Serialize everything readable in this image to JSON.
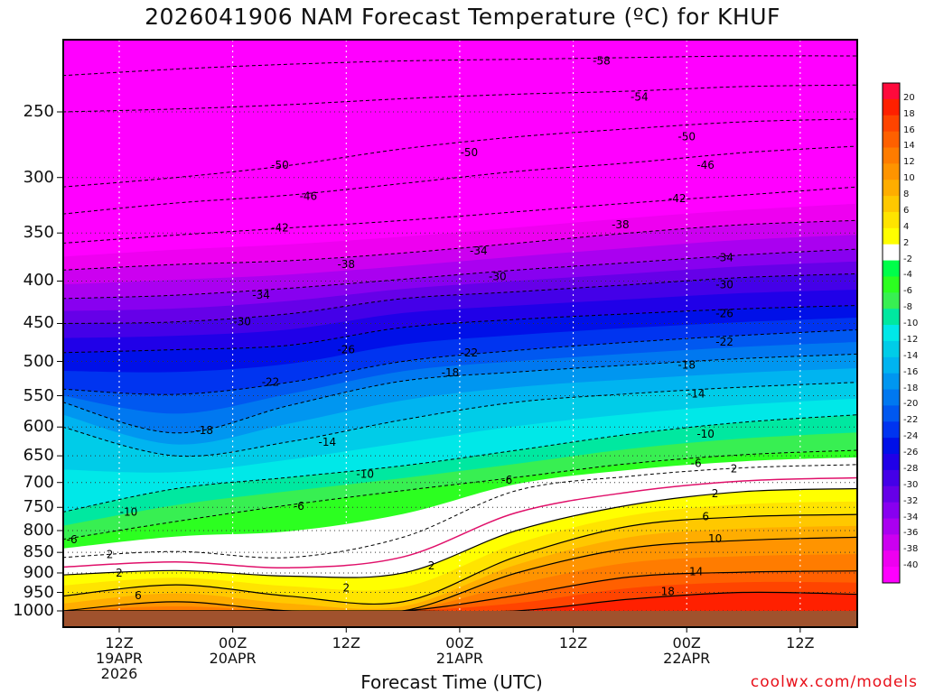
{
  "title": "2026041906 NAM Forecast Temperature (ºC) for KHUF",
  "credit": "coolwx.com/models",
  "chart_data": {
    "type": "heatmap",
    "title": "2026041906 NAM Forecast Temperature (ºC) for KHUF",
    "xlabel": "Forecast Time (UTC)",
    "ylabel": "",
    "x_unit": "forecast hour",
    "xlim": [
      0,
      84
    ],
    "ylim_hpa": [
      1000,
      200
    ],
    "y_scale": "log-pressure",
    "grid": true,
    "x_ticks": [
      {
        "hour": 6,
        "lines": [
          "12Z",
          "19APR",
          "2026"
        ]
      },
      {
        "hour": 18,
        "lines": [
          "00Z",
          "20APR"
        ]
      },
      {
        "hour": 30,
        "lines": [
          "12Z"
        ]
      },
      {
        "hour": 42,
        "lines": [
          "00Z",
          "21APR"
        ]
      },
      {
        "hour": 54,
        "lines": [
          "12Z"
        ]
      },
      {
        "hour": 66,
        "lines": [
          "00Z",
          "22APR"
        ]
      },
      {
        "hour": 78,
        "lines": [
          "12Z"
        ]
      }
    ],
    "y_ticks": [
      "250",
      "300",
      "350",
      "400",
      "450",
      "500",
      "550",
      "600",
      "650",
      "700",
      "750",
      "800",
      "850",
      "900",
      "950",
      "1000"
    ],
    "colorbar": {
      "labels": [
        "20",
        "18",
        "16",
        "14",
        "12",
        "10",
        "8",
        "6",
        "4",
        "2",
        "-2",
        "-4",
        "-6",
        "-8",
        "-10",
        "-12",
        "-14",
        "-16",
        "-18",
        "-20",
        "-22",
        "-24",
        "-26",
        "-28",
        "-30",
        "-32",
        "-34",
        "-36",
        "-38",
        "-40"
      ],
      "colors": [
        "#ff0a3c",
        "#ff2000",
        "#ff4400",
        "#ff6000",
        "#ff7c00",
        "#ff9400",
        "#ffad00",
        "#ffc800",
        "#ffe400",
        "#ffff00",
        "#ffffff",
        "#00ff4a",
        "#2cff20",
        "#38ef52",
        "#00e8a0",
        "#00e8e8",
        "#00cce8",
        "#00b4f0",
        "#0096f0",
        "#0078f0",
        "#0058f0",
        "#0034f0",
        "#0010e8",
        "#2000e8",
        "#4400e8",
        "#6600e8",
        "#8800f0",
        "#aa00f0",
        "#cc00f0",
        "#ee00f0",
        "#ff00ff"
      ]
    },
    "surface_color": "#a0522d",
    "isotherms_C": [
      {
        "t": -58,
        "p": [
          226,
          222,
          219,
          217,
          216,
          215,
          214,
          214
        ]
      },
      {
        "t": -54,
        "p": [
          250,
          248,
          245,
          241,
          238,
          236,
          233,
          232
        ]
      },
      {
        "t": -50,
        "p": [
          308,
          300,
          290,
          277,
          268,
          262,
          257,
          255
        ]
      },
      {
        "t": -46,
        "p": [
          332,
          322,
          315,
          305,
          295,
          288,
          280,
          275
        ]
      },
      {
        "t": -42,
        "p": [
          360,
          352,
          345,
          338,
          330,
          322,
          315,
          308
        ]
      },
      {
        "t": -38,
        "p": [
          388,
          382,
          378,
          370,
          360,
          350,
          342,
          338
        ]
      },
      {
        "t": -34,
        "p": [
          420,
          416,
          408,
          398,
          388,
          380,
          372,
          366
        ]
      },
      {
        "t": -30,
        "p": [
          450,
          448,
          438,
          420,
          412,
          404,
          396,
          392
        ]
      },
      {
        "t": -26,
        "p": [
          488,
          484,
          478,
          455,
          445,
          438,
          432,
          428
        ]
      },
      {
        "t": -22,
        "p": [
          540,
          548,
          530,
          500,
          485,
          474,
          465,
          458
        ]
      },
      {
        "t": -18,
        "p": [
          560,
          610,
          565,
          528,
          515,
          505,
          496,
          490
        ]
      },
      {
        "t": -14,
        "p": [
          600,
          650,
          625,
          588,
          560,
          547,
          537,
          530
        ]
      },
      {
        "t": -10,
        "p": [
          760,
          712,
          690,
          668,
          640,
          612,
          592,
          580
        ]
      },
      {
        "t": -6,
        "p": [
          820,
          780,
          745,
          716,
          690,
          664,
          648,
          640
        ]
      },
      {
        "t": -2,
        "p": [
          862,
          848,
          862,
          815,
          716,
          688,
          672,
          666
        ]
      }
    ],
    "contour_labels": [
      {
        "t": -58,
        "hour": 57,
        "p": 217
      },
      {
        "t": -54,
        "hour": 61,
        "p": 240
      },
      {
        "t": -50,
        "hour": 23,
        "p": 290
      },
      {
        "t": -50,
        "hour": 43,
        "p": 280
      },
      {
        "t": -50,
        "hour": 66,
        "p": 268
      },
      {
        "t": -46,
        "hour": 26,
        "p": 316
      },
      {
        "t": -46,
        "hour": 68,
        "p": 290
      },
      {
        "t": -42,
        "hour": 23,
        "p": 345
      },
      {
        "t": -42,
        "hour": 65,
        "p": 318
      },
      {
        "t": -38,
        "hour": 30,
        "p": 382
      },
      {
        "t": -38,
        "hour": 59,
        "p": 342
      },
      {
        "t": -34,
        "hour": 21,
        "p": 416
      },
      {
        "t": -34,
        "hour": 44,
        "p": 368
      },
      {
        "t": -34,
        "hour": 70,
        "p": 375
      },
      {
        "t": -30,
        "hour": 19,
        "p": 448
      },
      {
        "t": -30,
        "hour": 46,
        "p": 395
      },
      {
        "t": -30,
        "hour": 70,
        "p": 404
      },
      {
        "t": -26,
        "hour": 30,
        "p": 484
      },
      {
        "t": -26,
        "hour": 70,
        "p": 438
      },
      {
        "t": -22,
        "hour": 22,
        "p": 530
      },
      {
        "t": -22,
        "hour": 43,
        "p": 488
      },
      {
        "t": -22,
        "hour": 70,
        "p": 474
      },
      {
        "t": -18,
        "hour": 15,
        "p": 606
      },
      {
        "t": -18,
        "hour": 41,
        "p": 516
      },
      {
        "t": -18,
        "hour": 66,
        "p": 505
      },
      {
        "t": -14,
        "hour": 28,
        "p": 626
      },
      {
        "t": -14,
        "hour": 67,
        "p": 547
      },
      {
        "t": -10,
        "hour": 7,
        "p": 760
      },
      {
        "t": -10,
        "hour": 32,
        "p": 684
      },
      {
        "t": -10,
        "hour": 68,
        "p": 612
      },
      {
        "t": -6,
        "hour": 1,
        "p": 820
      },
      {
        "t": -6,
        "hour": 25,
        "p": 748
      },
      {
        "t": -6,
        "hour": 47,
        "p": 695
      },
      {
        "t": -6,
        "hour": 67,
        "p": 664
      }
    ],
    "warm_isotherms_C": [
      {
        "t": 2,
        "p": [
          905,
          894,
          908,
          900,
          800,
          745,
          718,
          712
        ]
      },
      {
        "t": 6,
        "p": [
          960,
          930,
          960,
          975,
          860,
          790,
          770,
          765
        ]
      },
      {
        "t": 10,
        "p": [
          1000,
          975,
          1000,
          1000,
          900,
          840,
          822,
          815
        ]
      },
      {
        "t": 14,
        "p": [
          1000,
          1000,
          1000,
          1000,
          958,
          910,
          898,
          895
        ]
      },
      {
        "t": 18,
        "p": [
          1000,
          1000,
          1000,
          1000,
          1000,
          968,
          950,
          955
        ]
      }
    ],
    "warm_labels": [
      {
        "t": 2,
        "hour": 6,
        "p": 900
      },
      {
        "t": 2,
        "hour": 30,
        "p": 938
      },
      {
        "t": 2,
        "hour": 39,
        "p": 882
      },
      {
        "t": 2,
        "hour": 69,
        "p": 722
      },
      {
        "t": 2,
        "hour": 71,
        "p": 674
      },
      {
        "t": 6,
        "hour": 8,
        "p": 958
      },
      {
        "t": 6,
        "hour": 68,
        "p": 770
      },
      {
        "t": 10,
        "hour": 69,
        "p": 818
      },
      {
        "t": 14,
        "hour": 67,
        "p": 897
      },
      {
        "t": 18,
        "hour": 64,
        "p": 947
      },
      {
        "t": 2,
        "hour": 5,
        "p": 855
      }
    ]
  }
}
